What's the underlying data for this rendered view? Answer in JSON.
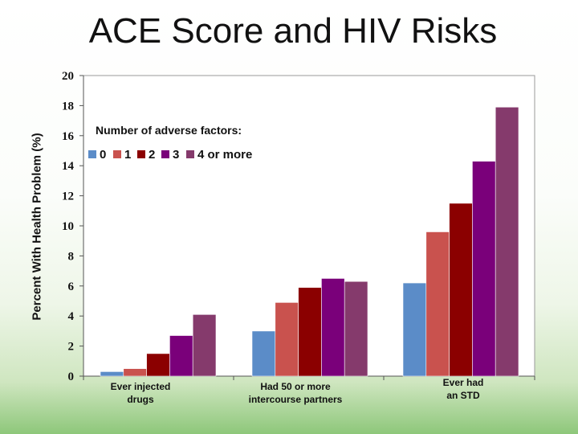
{
  "title": "ACE Score and HIV Risks",
  "chart_data": {
    "type": "bar",
    "title": "ACE Score and HIV Risks",
    "ylabel": "Percent With Health Problem  (%)",
    "xlabel": "",
    "ylim": [
      0,
      20
    ],
    "yticks": [
      0,
      2,
      4,
      6,
      8,
      10,
      12,
      14,
      16,
      18,
      20
    ],
    "grid": false,
    "legend_title": "Number of adverse factors:",
    "legend_position": "top-left",
    "categories": [
      [
        "Ever injected",
        "drugs"
      ],
      [
        "Had 50 or more",
        "intercourse partners"
      ],
      [
        "Ever had",
        "an STD"
      ]
    ],
    "series": [
      {
        "name": "0",
        "color": "#5b8cc8",
        "values": [
          0.3,
          3.0,
          6.2
        ]
      },
      {
        "name": "1",
        "color": "#c9524e",
        "values": [
          0.5,
          4.9,
          9.6
        ]
      },
      {
        "name": "2",
        "color": "#8b0000",
        "values": [
          1.5,
          5.9,
          11.5
        ]
      },
      {
        "name": "3",
        "color": "#7a007a",
        "values": [
          2.7,
          6.5,
          14.3
        ]
      },
      {
        "name": "4 or more",
        "color": "#853a6c",
        "values": [
          4.1,
          6.3,
          17.9
        ]
      }
    ]
  }
}
